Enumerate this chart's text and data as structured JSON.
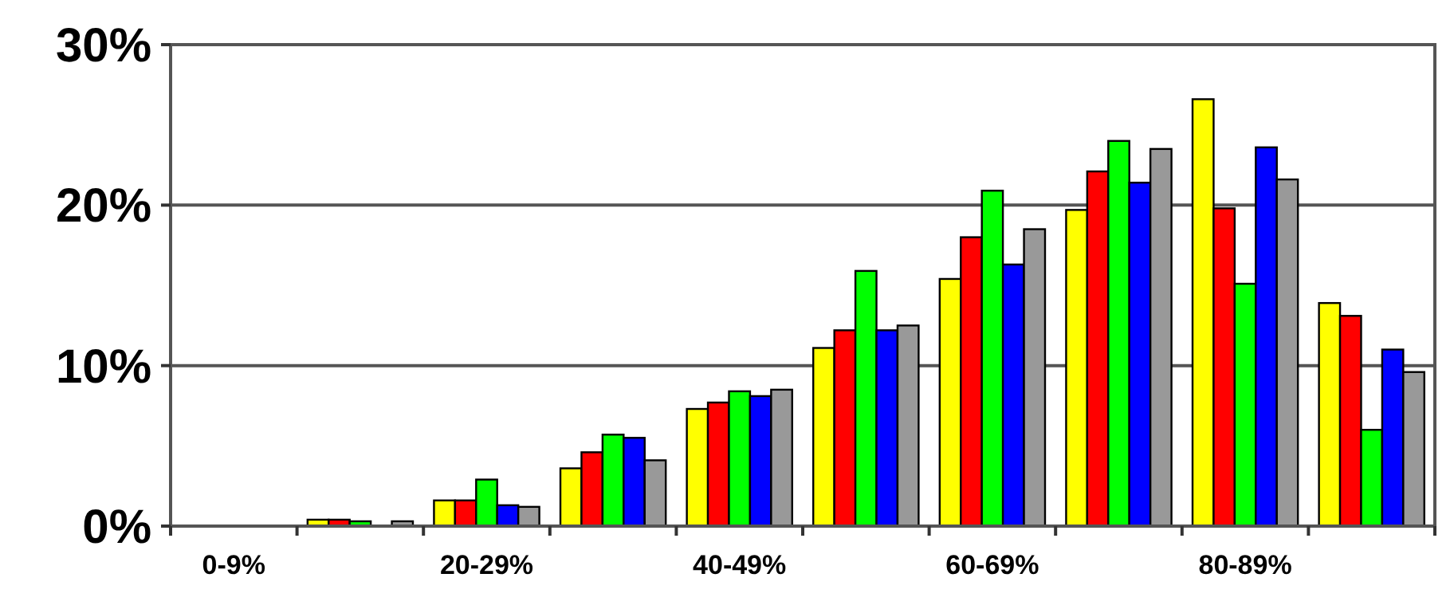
{
  "chart_data": {
    "type": "bar",
    "categories": [
      "0-9%",
      null,
      "20-29%",
      null,
      "40-49%",
      null,
      "60-69%",
      null,
      "80-89%",
      null
    ],
    "series": [
      {
        "color": "#ffff00",
        "values": [
          0,
          0.4,
          1.6,
          3.6,
          7.3,
          11.1,
          15.4,
          19.7,
          26.6,
          13.9
        ]
      },
      {
        "color": "#ff0000",
        "values": [
          0,
          0.4,
          1.6,
          4.6,
          7.7,
          12.2,
          18.0,
          22.1,
          19.8,
          13.1
        ]
      },
      {
        "color": "#00ff00",
        "values": [
          0,
          0.3,
          2.9,
          5.7,
          8.4,
          15.9,
          20.9,
          24.0,
          15.1,
          6.0
        ]
      },
      {
        "color": "#0000ff",
        "values": [
          0,
          0,
          1.3,
          5.5,
          8.1,
          12.2,
          16.3,
          21.4,
          23.6,
          11.0
        ]
      },
      {
        "color": "#999999",
        "values": [
          0,
          0.3,
          1.2,
          4.1,
          8.5,
          12.5,
          18.5,
          23.5,
          21.6,
          9.6
        ]
      }
    ],
    "ylim": [
      0,
      30
    ],
    "yticks": [
      {
        "value": 0,
        "label": "0%"
      },
      {
        "value": 10,
        "label": "10%"
      },
      {
        "value": 20,
        "label": "20%"
      },
      {
        "value": 30,
        "label": "30%"
      }
    ],
    "grid": "y"
  }
}
